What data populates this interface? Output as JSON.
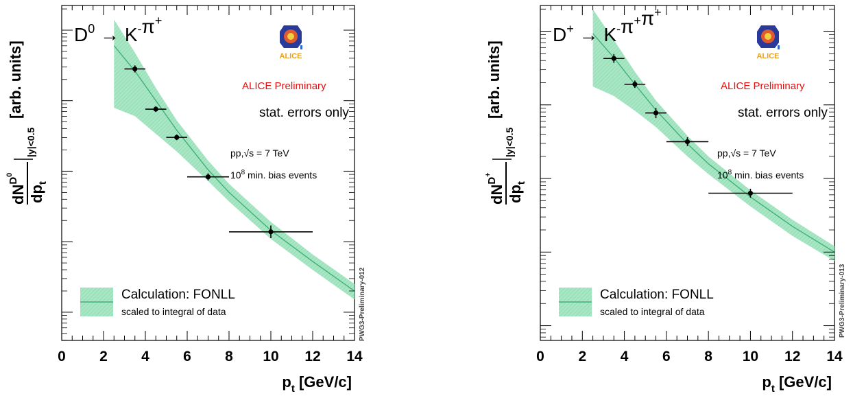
{
  "chart_data": [
    {
      "type": "scatter",
      "decay": {
        "main": "D",
        "sup": "0",
        "arrow": "→",
        "products": [
          {
            "t": "K",
            "s": "-"
          },
          {
            "t": "π",
            "s": "+"
          }
        ]
      },
      "xlabel": "p",
      "xlabel_sub": "t",
      "xlabel_unit": " [GeV/c]",
      "ylabel_parts": {
        "num": "dN",
        "num_sup": "D",
        "num_sup_sup": "0",
        "den": "dp",
        "den_sub": "t",
        "cond": "|y|<0.5",
        "unit": "[arb. units]"
      },
      "xlim": [
        0,
        14
      ],
      "xticks": [
        0,
        2,
        4,
        6,
        8,
        10,
        12,
        14
      ],
      "ylog": true,
      "ylim_log10": [
        -4.4,
        0.35
      ],
      "preliminary": "ALICE Preliminary",
      "stat_note": "stat. errors only",
      "energy_note": {
        "pre": "pp,",
        "sqrt": "√s",
        "post": " = 7 TeV"
      },
      "events_note": {
        "base": "10",
        "exp": "8",
        "rest": " min. bias events"
      },
      "legend": {
        "line1": "Calculation: FONLL",
        "line2": "scaled to integral of data",
        "placement": "bottom-left"
      },
      "watermark": "PWG3-Preliminary-012",
      "logo_text": "ALICE",
      "points": [
        {
          "x": 3.5,
          "xerr": 0.5,
          "y": -0.55,
          "yerr": 0.05
        },
        {
          "x": 4.5,
          "xerr": 0.5,
          "y": -1.12,
          "yerr": 0.04
        },
        {
          "x": 5.5,
          "xerr": 0.5,
          "y": -1.52,
          "yerr": 0.04
        },
        {
          "x": 7.0,
          "xerr": 1.0,
          "y": -2.08,
          "yerr": 0.05
        },
        {
          "x": 10.0,
          "xerr": 2.0,
          "y": -2.86,
          "yerr": 0.09
        }
      ],
      "fonll": {
        "x": [
          2.5,
          3.5,
          4.5,
          5.5,
          7.0,
          8.0,
          10.0,
          12.0,
          14.0
        ],
        "central": [
          -0.22,
          -0.58,
          -1.0,
          -1.42,
          -1.98,
          -2.3,
          -2.84,
          -3.28,
          -3.7
        ],
        "upper": [
          0.15,
          -0.32,
          -0.82,
          -1.28,
          -1.85,
          -2.18,
          -2.72,
          -3.18,
          -3.6
        ],
        "lower": [
          -1.1,
          -1.22,
          -1.47,
          -1.72,
          -2.14,
          -2.43,
          -2.96,
          -3.4,
          -3.82
        ]
      }
    },
    {
      "type": "scatter",
      "decay": {
        "main": "D",
        "sup": "+",
        "arrow": "→",
        "products": [
          {
            "t": "K",
            "s": "-"
          },
          {
            "t": "π",
            "s": "+"
          },
          {
            "t": "π",
            "s": "+"
          }
        ]
      },
      "xlabel": "p",
      "xlabel_sub": "t",
      "xlabel_unit": " [GeV/c]",
      "ylabel_parts": {
        "num": "dN",
        "num_sup": "D",
        "num_sup_sup": "+",
        "den": "dp",
        "den_sub": "t",
        "cond": "|y|<0.5",
        "unit": "[arb. units]"
      },
      "xlim": [
        0,
        14
      ],
      "xticks": [
        0,
        2,
        4,
        6,
        8,
        10,
        12,
        14
      ],
      "ylog": true,
      "ylim_log10": [
        -4.2,
        0.35
      ],
      "preliminary": "ALICE Preliminary",
      "stat_note": "stat. errors only",
      "energy_note": {
        "pre": "pp,",
        "sqrt": "√s",
        "post": " = 7 TeV"
      },
      "events_note": {
        "base": "10",
        "exp": "8",
        "rest": " min. bias events"
      },
      "legend": {
        "line1": "Calculation: FONLL",
        "line2": "scaled to integral of data",
        "placement": "bottom-left"
      },
      "watermark": "PWG3-Preliminary-013",
      "logo_text": "ALICE",
      "points": [
        {
          "x": 3.5,
          "xerr": 0.5,
          "y": -0.37,
          "yerr": 0.06
        },
        {
          "x": 4.5,
          "xerr": 0.5,
          "y": -0.72,
          "yerr": 0.05
        },
        {
          "x": 5.5,
          "xerr": 0.5,
          "y": -1.11,
          "yerr": 0.07
        },
        {
          "x": 7.0,
          "xerr": 1.0,
          "y": -1.5,
          "yerr": 0.06
        },
        {
          "x": 10.0,
          "xerr": 2.0,
          "y": -2.2,
          "yerr": 0.06
        }
      ],
      "fonll": {
        "x": [
          2.5,
          3.5,
          4.5,
          5.5,
          7.0,
          8.0,
          10.0,
          12.0,
          14.0
        ],
        "central": [
          -0.03,
          -0.36,
          -0.72,
          -1.07,
          -1.53,
          -1.8,
          -2.25,
          -2.65,
          -3.0
        ],
        "upper": [
          0.3,
          -0.12,
          -0.55,
          -0.94,
          -1.42,
          -1.7,
          -2.16,
          -2.56,
          -2.92
        ],
        "lower": [
          -0.75,
          -0.88,
          -1.08,
          -1.3,
          -1.7,
          -1.94,
          -2.38,
          -2.78,
          -3.12
        ]
      }
    }
  ]
}
